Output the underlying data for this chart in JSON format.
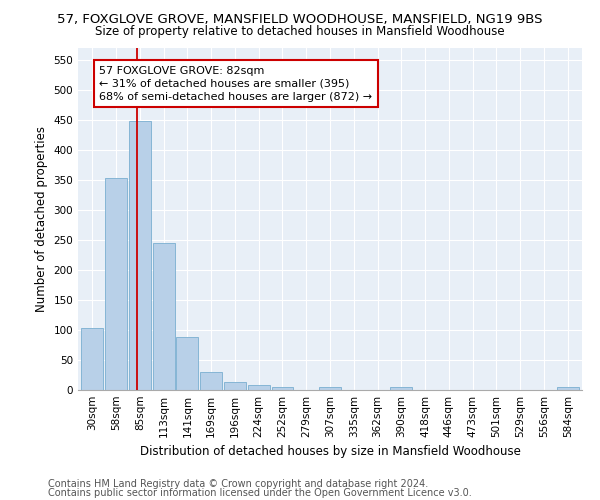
{
  "title1": "57, FOXGLOVE GROVE, MANSFIELD WOODHOUSE, MANSFIELD, NG19 9BS",
  "title2": "Size of property relative to detached houses in Mansfield Woodhouse",
  "xlabel": "Distribution of detached houses by size in Mansfield Woodhouse",
  "ylabel": "Number of detached properties",
  "footer1": "Contains HM Land Registry data © Crown copyright and database right 2024.",
  "footer2": "Contains public sector information licensed under the Open Government Licence v3.0.",
  "bar_labels": [
    "30sqm",
    "58sqm",
    "85sqm",
    "113sqm",
    "141sqm",
    "169sqm",
    "196sqm",
    "224sqm",
    "252sqm",
    "279sqm",
    "307sqm",
    "335sqm",
    "362sqm",
    "390sqm",
    "418sqm",
    "446sqm",
    "473sqm",
    "501sqm",
    "529sqm",
    "556sqm",
    "584sqm"
  ],
  "bar_values": [
    103,
    353,
    448,
    245,
    88,
    30,
    13,
    9,
    5,
    0,
    5,
    0,
    0,
    5,
    0,
    0,
    0,
    0,
    0,
    0,
    5
  ],
  "bar_color": "#b8d0e8",
  "bar_edgecolor": "#7aaed0",
  "annotation_text": "57 FOXGLOVE GROVE: 82sqm\n← 31% of detached houses are smaller (395)\n68% of semi-detached houses are larger (872) →",
  "vline_x_idx": 2,
  "vline_color": "#cc0000",
  "annotation_box_edgecolor": "#cc0000",
  "annotation_box_facecolor": "#ffffff",
  "ylim_max": 570,
  "yticks": [
    0,
    50,
    100,
    150,
    200,
    250,
    300,
    350,
    400,
    450,
    500,
    550
  ],
  "bg_color": "#e8eff7",
  "title1_fontsize": 9.5,
  "title2_fontsize": 8.5,
  "xlabel_fontsize": 8.5,
  "ylabel_fontsize": 8.5,
  "footer_fontsize": 7,
  "tick_fontsize": 7.5,
  "annot_fontsize": 8
}
